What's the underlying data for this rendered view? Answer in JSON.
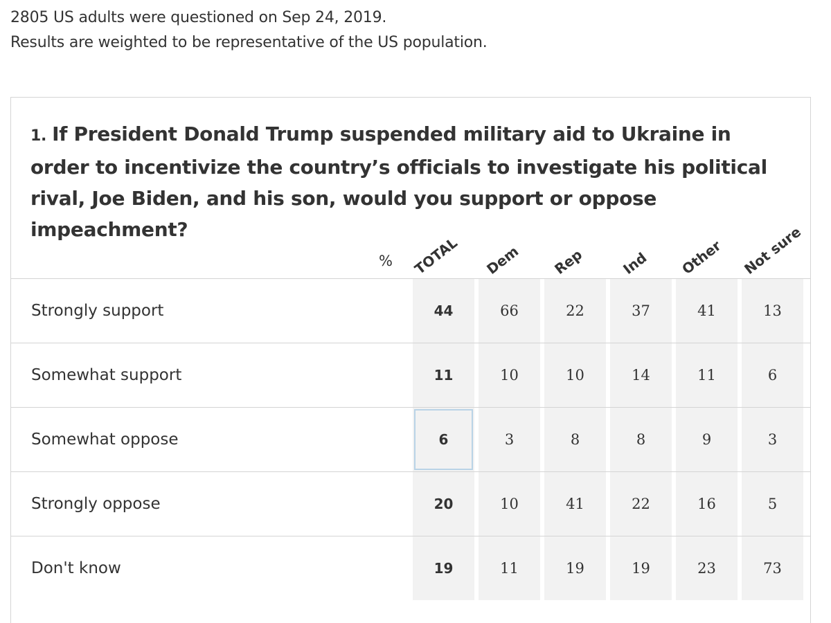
{
  "meta": {
    "line1": "2805 US adults were questioned on Sep 24, 2019.",
    "line2": "Results are weighted to be representative of the US population."
  },
  "question": {
    "number": "1.",
    "text": "If President Donald Trump suspended military aid to Ukraine in order to incentivize the country’s officials to investigate his political rival, Joe Biden, and his son, would you support or oppose impeachment?"
  },
  "table": {
    "unit_label": "%",
    "columns": [
      "TOTAL",
      "Dem",
      "Rep",
      "Ind",
      "Other",
      "Not sure"
    ],
    "rows": [
      {
        "label": "Strongly support",
        "values": [
          "44",
          "66",
          "22",
          "37",
          "41",
          "13"
        ]
      },
      {
        "label": "Somewhat support",
        "values": [
          "11",
          "10",
          "10",
          "14",
          "11",
          "6"
        ]
      },
      {
        "label": "Somewhat oppose",
        "values": [
          "6",
          "3",
          "8",
          "8",
          "9",
          "3"
        ]
      },
      {
        "label": "Strongly oppose",
        "values": [
          "20",
          "10",
          "41",
          "22",
          "16",
          "5"
        ]
      },
      {
        "label": "Don't know",
        "values": [
          "19",
          "11",
          "19",
          "19",
          "23",
          "73"
        ]
      }
    ],
    "selected_cell": {
      "row": 2,
      "col": 0
    }
  },
  "colors": {
    "text": "#333333",
    "cell_background": "#f2f2f2",
    "border": "#d4d4d4",
    "selection_outline": "#b9d3e6"
  }
}
